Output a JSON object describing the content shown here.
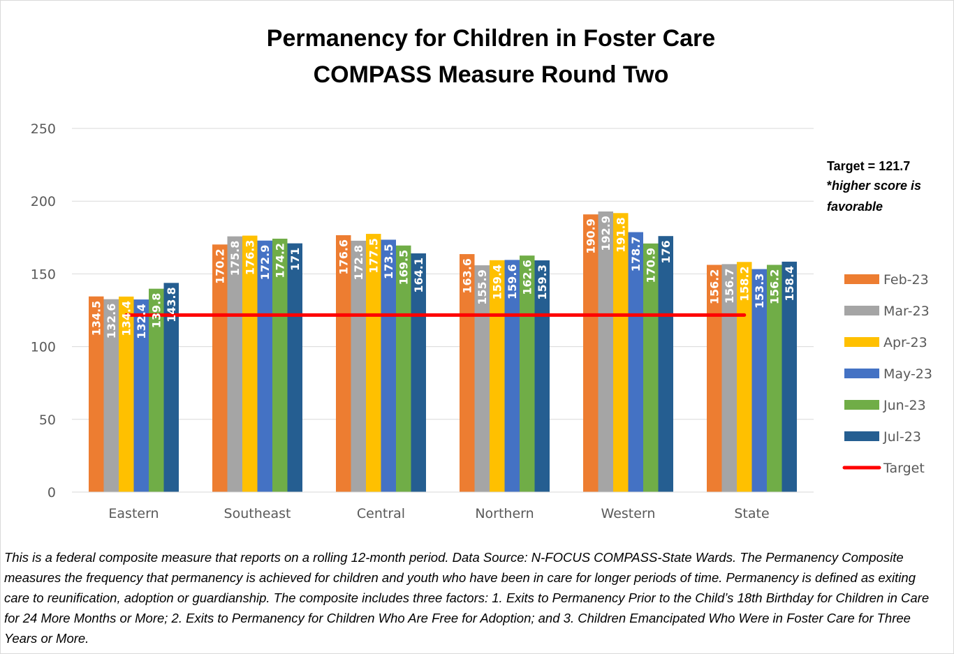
{
  "chart_data": {
    "type": "bar",
    "title_lines": [
      "Permanency for Children in Foster Care",
      "COMPASS Measure Round Two"
    ],
    "categories": [
      "Eastern",
      "Southeast",
      "Central",
      "Northern",
      "Western",
      "State"
    ],
    "series": [
      {
        "name": "Feb-23",
        "color": "#ED7D31",
        "values": [
          134.5,
          170.2,
          176.6,
          163.6,
          190.9,
          156.2
        ]
      },
      {
        "name": "Mar-23",
        "color": "#A5A5A5",
        "values": [
          132.6,
          175.8,
          172.8,
          155.9,
          192.9,
          156.7
        ]
      },
      {
        "name": "Apr-23",
        "color": "#FFC000",
        "values": [
          134.4,
          176.3,
          177.5,
          159.4,
          191.8,
          158.2
        ]
      },
      {
        "name": "May-23",
        "color": "#4472C4",
        "values": [
          132.4,
          172.9,
          173.5,
          159.6,
          178.7,
          153.3
        ]
      },
      {
        "name": "Jun-23",
        "color": "#70AD47",
        "values": [
          139.8,
          174.2,
          169.5,
          162.6,
          170.9,
          156.2
        ]
      },
      {
        "name": "Jul-23",
        "color": "#255E91",
        "values": [
          143.8,
          171,
          164.1,
          159.3,
          176,
          158.4
        ]
      }
    ],
    "data_labels": [
      [
        "134.5",
        "170.2",
        "176.6",
        "163.6",
        "190.9",
        "156.2"
      ],
      [
        "132.6",
        "175.8",
        "172.8",
        "155.9",
        "192.9",
        "156.7"
      ],
      [
        "134.4",
        "176.3",
        "177.5",
        "159.4",
        "191.8",
        "158.2"
      ],
      [
        "132.4",
        "172.9",
        "173.5",
        "159.6",
        "178.7",
        "153.3"
      ],
      [
        "139.8",
        "174.2",
        "169.5",
        "162.6",
        "170.9",
        "156.2"
      ],
      [
        "143.8",
        "171",
        "164.1",
        "159.3",
        "176",
        "158.4"
      ]
    ],
    "target": {
      "name": "Target",
      "value": 121.7,
      "color": "#FF0000"
    },
    "yticks": [
      0,
      50,
      100,
      150,
      200,
      250
    ],
    "ylim": [
      0,
      250
    ],
    "grid": true,
    "legend_position": "right",
    "annotation": {
      "line1": "Target = 121.7",
      "line2_prefix": "*",
      "line2_italic": "higher score is",
      "line3_italic": "favorable"
    }
  },
  "footnote": "This is a federal composite measure that reports on a rolling 12-month period. Data Source: N-FOCUS COMPASS-State Wards. The Permanency Composite measures the frequency that permanency is achieved for children and youth who have been in care for longer periods of time. Permanency is defined as exiting care to reunification, adoption or guardianship. The composite includes three factors: 1. Exits to Permanency Prior to the Child’s 18th Birthday for Children in Care for 24 More Months or More; 2. Exits to Permanency for Children Who Are Free for Adoption; and 3. Children Emancipated Who Were in Foster Care for Three Years or More."
}
